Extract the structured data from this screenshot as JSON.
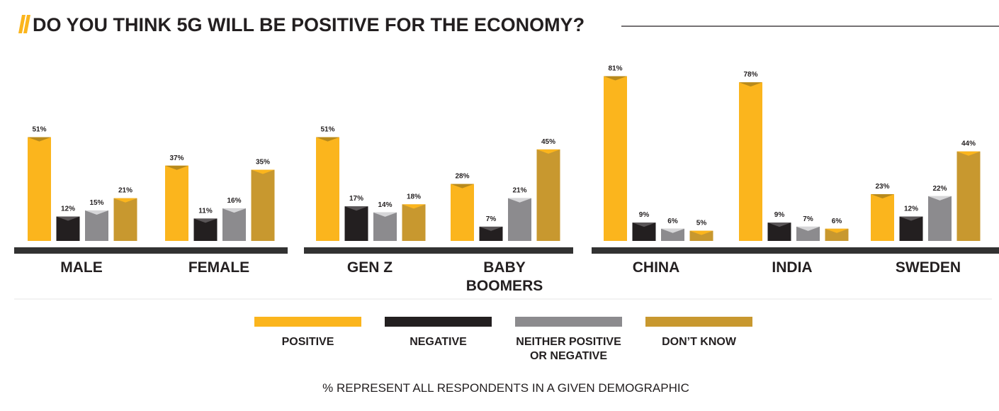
{
  "title": "DO YOU THINK 5G WILL BE POSITIVE FOR THE ECONOMY?",
  "footnote": "% REPRESENT ALL RESPONDENTS IN A GIVEN DEMOGRAPHIC",
  "colors": {
    "positive": "#fbb51d",
    "negative": "#231f20",
    "neither": "#8c8b8e",
    "dont_know": "#c8982f",
    "accent": "#fbb51d",
    "baseline": "#323232"
  },
  "chart_data": {
    "type": "bar",
    "ylim": [
      0,
      100
    ],
    "series_names": [
      "POSITIVE",
      "NEGATIVE",
      "NEITHER POSITIVE OR NEGATIVE",
      "DON’T KNOW"
    ],
    "value_labels_suffix": "%",
    "panels": [
      {
        "categories": [
          {
            "label": [
              "MALE"
            ],
            "values": [
              51,
              12,
              15,
              21
            ]
          },
          {
            "label": [
              "FEMALE"
            ],
            "values": [
              37,
              11,
              16,
              35
            ]
          }
        ]
      },
      {
        "categories": [
          {
            "label": [
              "GEN Z"
            ],
            "values": [
              51,
              17,
              14,
              18
            ]
          },
          {
            "label": [
              "BABY",
              "BOOMERS"
            ],
            "values": [
              28,
              7,
              21,
              45
            ]
          }
        ]
      },
      {
        "categories": [
          {
            "label": [
              "CHINA"
            ],
            "values": [
              81,
              9,
              6,
              5
            ]
          },
          {
            "label": [
              "INDIA"
            ],
            "values": [
              78,
              9,
              7,
              6
            ]
          },
          {
            "label": [
              "SWEDEN"
            ],
            "values": [
              23,
              12,
              22,
              44
            ]
          }
        ]
      }
    ],
    "legend": [
      {
        "label": [
          "POSITIVE"
        ],
        "color": "#fbb51d"
      },
      {
        "label": [
          "NEGATIVE"
        ],
        "color": "#231f20"
      },
      {
        "label": [
          "NEITHER POSITIVE",
          "OR NEGATIVE"
        ],
        "color": "#8c8b8e"
      },
      {
        "label": [
          "DON’T KNOW"
        ],
        "color": "#c8982f"
      }
    ]
  }
}
